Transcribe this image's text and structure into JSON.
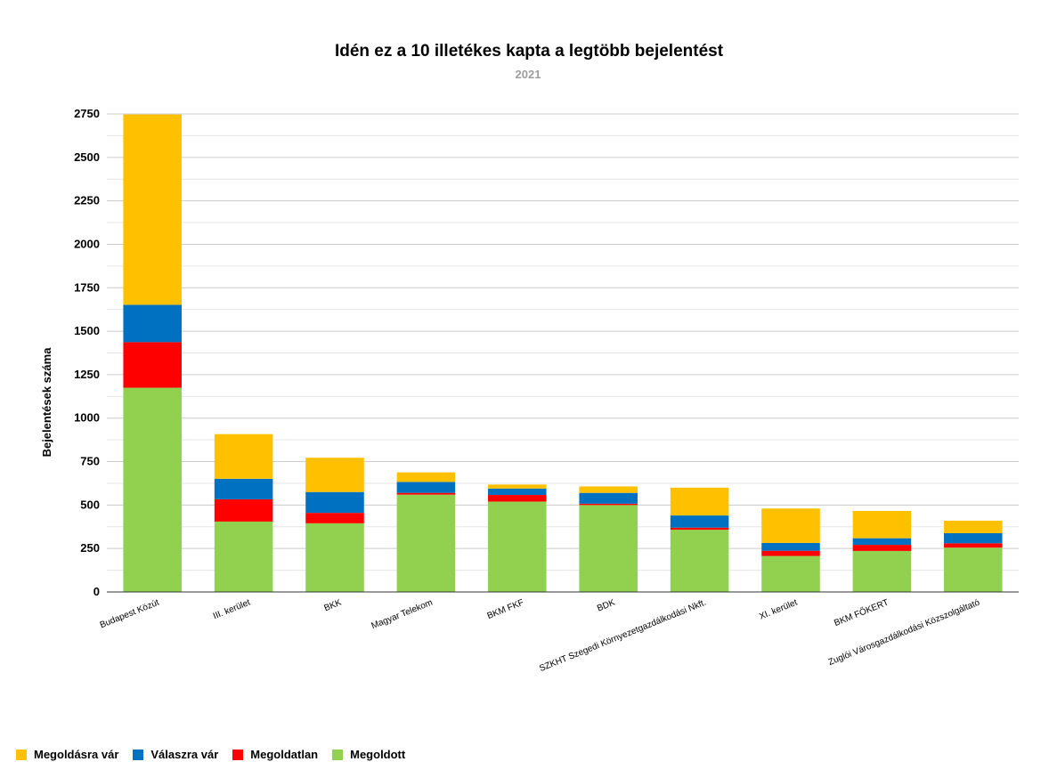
{
  "chart_data": {
    "type": "bar",
    "stacked": true,
    "title": "Idén ez a 10 illetékes kapta a legtöbb bejelentést",
    "subtitle": "2021",
    "ylabel": "Bejelentések száma",
    "xlabel": "",
    "ylim": [
      0,
      2750
    ],
    "yticks": [
      0,
      250,
      500,
      750,
      1000,
      1250,
      1500,
      1750,
      2000,
      2250,
      2500,
      2750
    ],
    "grid": true,
    "legend_position": "bottom-left",
    "categories": [
      "Budapest Közút",
      "III. kerület",
      "BKK",
      "Magyar Telekom",
      "BKM FKF",
      "BDK",
      "SZKHT Szegedi Környezetgazdálkodási Nkft.",
      "XI. kerület",
      "BKM FŐKERT",
      "Zuglói Városgazdálkodási Közszolgáltató"
    ],
    "series": [
      {
        "name": "Megoldott",
        "color": "#92d050",
        "values": [
          1175,
          405,
          395,
          560,
          520,
          500,
          358,
          207,
          236,
          255
        ]
      },
      {
        "name": "Megoldatlan",
        "color": "#ff0000",
        "values": [
          262,
          128,
          60,
          10,
          38,
          8,
          12,
          30,
          35,
          25
        ]
      },
      {
        "name": "Válaszra vár",
        "color": "#0070c0",
        "values": [
          215,
          118,
          120,
          63,
          37,
          62,
          70,
          45,
          38,
          58
        ]
      },
      {
        "name": "Megoldásra vár",
        "color": "#ffc000",
        "values": [
          1095,
          257,
          197,
          55,
          23,
          37,
          160,
          198,
          157,
          72
        ]
      }
    ]
  },
  "legend": {
    "items": [
      {
        "label": "Megoldásra vár",
        "color": "#ffc000"
      },
      {
        "label": "Válaszra vár",
        "color": "#0070c0"
      },
      {
        "label": "Megoldatlan",
        "color": "#ff0000"
      },
      {
        "label": "Megoldott",
        "color": "#92d050"
      }
    ]
  }
}
